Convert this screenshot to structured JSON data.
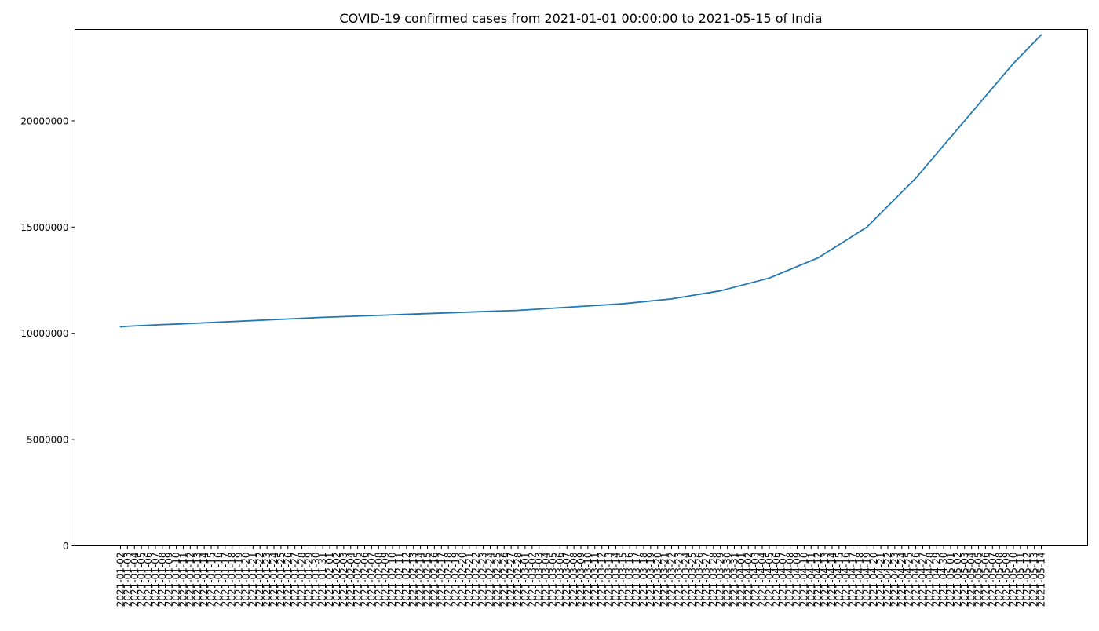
{
  "chart_data": {
    "type": "line",
    "title": "COVID-19 confirmed cases from 2021-01-01 00:00:00 to 2021-05-15 of India",
    "xlabel": "",
    "ylabel": "",
    "ylim": [
      0,
      24300000
    ],
    "y_ticks": [
      0,
      5000000,
      10000000,
      15000000,
      20000000
    ],
    "y_tick_labels": [
      "0",
      "5000000",
      "10000000",
      "15000000",
      "20000000"
    ],
    "x_tick_labels": [
      "2021-01-02",
      "2021-01-03",
      "2021-01-04",
      "2021-01-05",
      "2021-01-06",
      "2021-01-07",
      "2021-01-08",
      "2021-01-09",
      "2021-01-10",
      "2021-01-11",
      "2021-01-12",
      "2021-01-13",
      "2021-01-14",
      "2021-01-15",
      "2021-01-16",
      "2021-01-17",
      "2021-01-18",
      "2021-01-19",
      "2021-01-20",
      "2021-01-21",
      "2021-01-22",
      "2021-01-23",
      "2021-01-24",
      "2021-01-25",
      "2021-01-26",
      "2021-01-27",
      "2021-01-28",
      "2021-01-29",
      "2021-01-30",
      "2021-01-31",
      "2021-02-01",
      "2021-02-02",
      "2021-02-03",
      "2021-02-04",
      "2021-02-05",
      "2021-02-06",
      "2021-02-07",
      "2021-02-08",
      "2021-02-09",
      "2021-02-10",
      "2021-02-11",
      "2021-02-12",
      "2021-02-13",
      "2021-02-14",
      "2021-02-15",
      "2021-02-16",
      "2021-02-17",
      "2021-02-18",
      "2021-02-19",
      "2021-02-20",
      "2021-02-21",
      "2021-02-22",
      "2021-02-23",
      "2021-02-24",
      "2021-02-25",
      "2021-02-26",
      "2021-02-27",
      "2021-02-28",
      "2021-03-01",
      "2021-03-02",
      "2021-03-03",
      "2021-03-04",
      "2021-03-05",
      "2021-03-06",
      "2021-03-07",
      "2021-03-08",
      "2021-03-09",
      "2021-03-10",
      "2021-03-11",
      "2021-03-12",
      "2021-03-13",
      "2021-03-14",
      "2021-03-15",
      "2021-03-16",
      "2021-03-17",
      "2021-03-18",
      "2021-03-19",
      "2021-03-20",
      "2021-03-21",
      "2021-03-22",
      "2021-03-23",
      "2021-03-24",
      "2021-03-25",
      "2021-03-26",
      "2021-03-27",
      "2021-03-28",
      "2021-03-29",
      "2021-03-30",
      "2021-03-31",
      "2021-04-01",
      "2021-04-02",
      "2021-04-03",
      "2021-04-04",
      "2021-04-05",
      "2021-04-06",
      "2021-04-07",
      "2021-04-08",
      "2021-04-09",
      "2021-04-10",
      "2021-04-11",
      "2021-04-12",
      "2021-04-13",
      "2021-04-14",
      "2021-04-15",
      "2021-04-16",
      "2021-04-17",
      "2021-04-18",
      "2021-04-19",
      "2021-04-20",
      "2021-04-21",
      "2021-04-22",
      "2021-04-23",
      "2021-04-24",
      "2021-04-25",
      "2021-04-26",
      "2021-04-27",
      "2021-04-28",
      "2021-04-29",
      "2021-04-30",
      "2021-05-01",
      "2021-05-02",
      "2021-05-03",
      "2021-05-04",
      "2021-05-05",
      "2021-05-06",
      "2021-05-07",
      "2021-05-08",
      "2021-05-09",
      "2021-05-10",
      "2021-05-11",
      "2021-05-12",
      "2021-05-13",
      "2021-05-14"
    ],
    "anchors": [
      {
        "date": "2021-01-02",
        "value": 10300000
      },
      {
        "date": "2021-01-03",
        "value": 10330000
      },
      {
        "date": "2021-01-08",
        "value": 10410000
      },
      {
        "date": "2021-01-10",
        "value": 10430000
      },
      {
        "date": "2021-01-31",
        "value": 10750000
      },
      {
        "date": "2021-02-28",
        "value": 11080000
      },
      {
        "date": "2021-03-15",
        "value": 11390000
      },
      {
        "date": "2021-03-22",
        "value": 11620000
      },
      {
        "date": "2021-03-29",
        "value": 12000000
      },
      {
        "date": "2021-04-05",
        "value": 12600000
      },
      {
        "date": "2021-04-12",
        "value": 13550000
      },
      {
        "date": "2021-04-19",
        "value": 15000000
      },
      {
        "date": "2021-04-26",
        "value": 17300000
      },
      {
        "date": "2021-05-03",
        "value": 20000000
      },
      {
        "date": "2021-05-10",
        "value": 22700000
      },
      {
        "date": "2021-05-14",
        "value": 24050000
      }
    ],
    "series": [
      {
        "color": "#1f77b4"
      }
    ],
    "grid": false,
    "legend": "none"
  }
}
